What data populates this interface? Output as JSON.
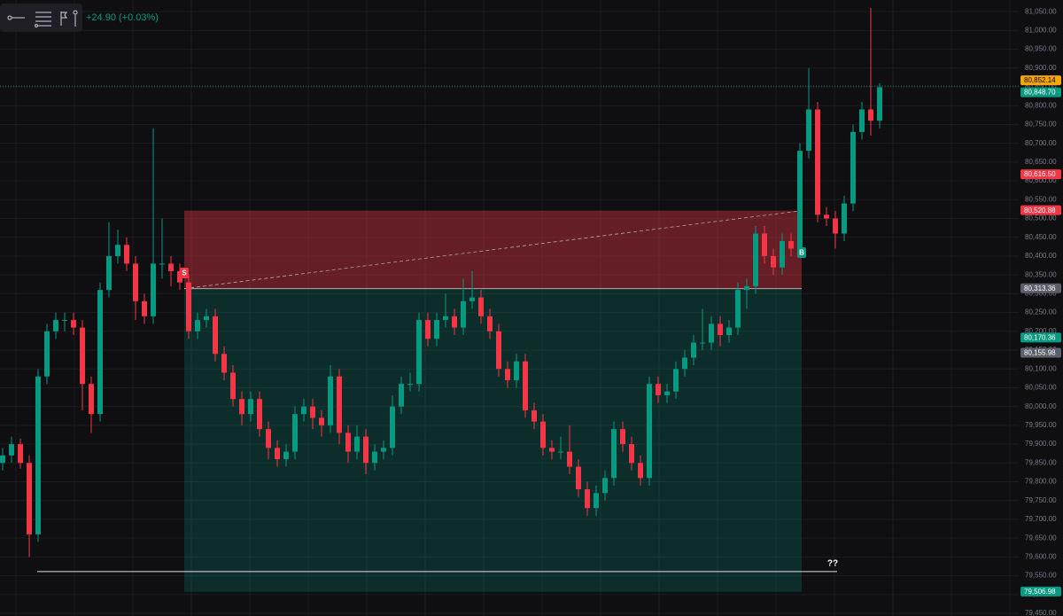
{
  "chart_data": {
    "type": "candlestick",
    "change_label": "+24.90 (+0.03%)",
    "up_color": "#089981",
    "down_color": "#f23645",
    "ylim": [
      79443,
      81081
    ],
    "yticks": [
      {
        "value": 79450,
        "label": "79,450.00"
      },
      {
        "value": 79500,
        "label": "79,500.00"
      },
      {
        "value": 79550,
        "label": "79,550.00"
      },
      {
        "value": 79600,
        "label": "79,600.00"
      },
      {
        "value": 79650,
        "label": "79,650.00"
      },
      {
        "value": 79700,
        "label": "79,700.00"
      },
      {
        "value": 79750,
        "label": "79,750.00"
      },
      {
        "value": 79800,
        "label": "79,800.00"
      },
      {
        "value": 79850,
        "label": "79,850.00"
      },
      {
        "value": 79900,
        "label": "79,900.00"
      },
      {
        "value": 79950,
        "label": "79,950.00"
      },
      {
        "value": 80000,
        "label": "80,000.00"
      },
      {
        "value": 80050,
        "label": "80,050.00"
      },
      {
        "value": 80100,
        "label": "80,100.00"
      },
      {
        "value": 80150,
        "label": "80,150.00"
      },
      {
        "value": 80200,
        "label": "80,200.00"
      },
      {
        "value": 80250,
        "label": "80,250.00"
      },
      {
        "value": 80300,
        "label": "80,300.00"
      },
      {
        "value": 80350,
        "label": "80,350.00"
      },
      {
        "value": 80400,
        "label": "80,400.00"
      },
      {
        "value": 80450,
        "label": "80,450.00"
      },
      {
        "value": 80500,
        "label": "80,500.00"
      },
      {
        "value": 80550,
        "label": "80,550.00"
      },
      {
        "value": 80600,
        "label": "80,600.00"
      },
      {
        "value": 80650,
        "label": "80,650.00"
      },
      {
        "value": 80700,
        "label": "80,700.00"
      },
      {
        "value": 80750,
        "label": "80,750.00"
      },
      {
        "value": 80800,
        "label": "80,800.00"
      },
      {
        "value": 80850,
        "label": "80,850.00"
      },
      {
        "value": 80900,
        "label": "80,900.00"
      },
      {
        "value": 80950,
        "label": "80,950.00"
      },
      {
        "value": 81000,
        "label": "81,000.00"
      },
      {
        "value": 81050,
        "label": "81,050.00"
      }
    ],
    "price_labels": [
      {
        "value": 80852.14,
        "label": "80,852.14",
        "color": "#f7a600"
      },
      {
        "value": 80848.7,
        "label": "80,848.70",
        "color": "#089981"
      },
      {
        "value": 80616.5,
        "label": "80,616.50",
        "color": "#f23645"
      },
      {
        "value": 80520.88,
        "label": "80,520.88",
        "color": "#f23645"
      },
      {
        "value": 80313.36,
        "label": "80,313.36",
        "color": "#5d606b"
      },
      {
        "value": 80170.36,
        "label": "80,170.36",
        "color": "#089981"
      },
      {
        "value": 80155.98,
        "label": "80,155.98",
        "color": "#5d606b"
      },
      {
        "value": 79506.98,
        "label": "79,506.98",
        "color": "#089981"
      }
    ],
    "sell_marker": "S",
    "buy_marker": "B",
    "hline": {
      "value": 79561,
      "label": "??"
    },
    "ohlc": [
      [
        79850,
        79890,
        79830,
        79870
      ],
      [
        79870,
        79920,
        79850,
        79900
      ],
      [
        79900,
        79915,
        79835,
        79850
      ],
      [
        79850,
        79870,
        79600,
        79660
      ],
      [
        79660,
        80100,
        79640,
        80080
      ],
      [
        80080,
        80220,
        80060,
        80200
      ],
      [
        80200,
        80250,
        80180,
        80230
      ],
      [
        80230,
        80250,
        80200,
        80230
      ],
      [
        80230,
        80250,
        80190,
        80210
      ],
      [
        80210,
        80230,
        79990,
        80060
      ],
      [
        80060,
        80080,
        79930,
        79980
      ],
      [
        79980,
        80330,
        79960,
        80310
      ],
      [
        80310,
        80490,
        80290,
        80400
      ],
      [
        80400,
        80470,
        80380,
        80430
      ],
      [
        80430,
        80450,
        80360,
        80380
      ],
      [
        80380,
        80400,
        80230,
        80280
      ],
      [
        80280,
        80300,
        80220,
        80240
      ],
      [
        80240,
        80740,
        80220,
        80380
      ],
      [
        80380,
        80500,
        80340,
        80380
      ],
      [
        80380,
        80400,
        80320,
        80360
      ],
      [
        80360,
        80380,
        80310,
        80330
      ],
      [
        80330,
        80350,
        80180,
        80200
      ],
      [
        80200,
        80250,
        80180,
        80230
      ],
      [
        80230,
        80260,
        80210,
        80240
      ],
      [
        80240,
        80260,
        80120,
        80140
      ],
      [
        80140,
        80160,
        80070,
        80090
      ],
      [
        80090,
        80110,
        80000,
        80020
      ],
      [
        80020,
        80040,
        79950,
        79980
      ],
      [
        79980,
        80040,
        79960,
        80020
      ],
      [
        80020,
        80040,
        79920,
        79940
      ],
      [
        79940,
        79960,
        79860,
        79890
      ],
      [
        79890,
        79910,
        79840,
        79860
      ],
      [
        79860,
        79900,
        79840,
        79880
      ],
      [
        79880,
        80000,
        79860,
        79980
      ],
      [
        79980,
        80020,
        79960,
        80000
      ],
      [
        80000,
        80020,
        79940,
        79970
      ],
      [
        79970,
        79990,
        79920,
        79950
      ],
      [
        79950,
        80110,
        79930,
        80080
      ],
      [
        80080,
        80100,
        79900,
        79930
      ],
      [
        79930,
        79950,
        79850,
        79880
      ],
      [
        79880,
        79950,
        79860,
        79920
      ],
      [
        79920,
        79940,
        79820,
        79850
      ],
      [
        79850,
        79900,
        79830,
        79880
      ],
      [
        79880,
        79910,
        79860,
        79890
      ],
      [
        79890,
        80030,
        79870,
        80000
      ],
      [
        80000,
        80080,
        79980,
        80060
      ],
      [
        80060,
        80090,
        80040,
        80060
      ],
      [
        80060,
        80250,
        80040,
        80230
      ],
      [
        80230,
        80250,
        80160,
        80180
      ],
      [
        80180,
        80250,
        80160,
        80230
      ],
      [
        80230,
        80300,
        80210,
        80240
      ],
      [
        80240,
        80260,
        80190,
        80210
      ],
      [
        80210,
        80340,
        80190,
        80280
      ],
      [
        80280,
        80360,
        80260,
        80290
      ],
      [
        80290,
        80310,
        80220,
        80240
      ],
      [
        80240,
        80260,
        80180,
        80200
      ],
      [
        80200,
        80220,
        80080,
        80100
      ],
      [
        80100,
        80120,
        80050,
        80070
      ],
      [
        80070,
        80140,
        80050,
        80120
      ],
      [
        80120,
        80140,
        79970,
        79990
      ],
      [
        79990,
        80010,
        79940,
        79960
      ],
      [
        79960,
        79980,
        79870,
        79890
      ],
      [
        79890,
        79910,
        79860,
        79880
      ],
      [
        79880,
        79920,
        79860,
        79880
      ],
      [
        79880,
        79950,
        79820,
        79840
      ],
      [
        79840,
        79860,
        79760,
        79780
      ],
      [
        79780,
        79800,
        79710,
        79730
      ],
      [
        79730,
        79790,
        79710,
        79770
      ],
      [
        79770,
        79830,
        79750,
        79810
      ],
      [
        79810,
        79960,
        79790,
        79940
      ],
      [
        79940,
        79960,
        79880,
        79900
      ],
      [
        79900,
        79920,
        79830,
        79850
      ],
      [
        79850,
        79870,
        79790,
        79810
      ],
      [
        79810,
        80080,
        79790,
        80060
      ],
      [
        80060,
        80080,
        80010,
        80030
      ],
      [
        80030,
        80060,
        80010,
        80040
      ],
      [
        80040,
        80120,
        80020,
        80100
      ],
      [
        80100,
        80150,
        80080,
        80130
      ],
      [
        80130,
        80190,
        80110,
        80170
      ],
      [
        80170,
        80260,
        80150,
        80170
      ],
      [
        80170,
        80240,
        80150,
        80220
      ],
      [
        80220,
        80240,
        80160,
        80190
      ],
      [
        80190,
        80230,
        80170,
        80210
      ],
      [
        80210,
        80330,
        80190,
        80310
      ],
      [
        80310,
        80340,
        80260,
        80320
      ],
      [
        80320,
        80480,
        80300,
        80460
      ],
      [
        80460,
        80480,
        80380,
        80400
      ],
      [
        80400,
        80420,
        80350,
        80370
      ],
      [
        80370,
        80460,
        80350,
        80440
      ],
      [
        80440,
        80460,
        80400,
        80420
      ],
      [
        80420,
        80700,
        80400,
        80680
      ],
      [
        80680,
        80900,
        80660,
        80790
      ],
      [
        80790,
        80810,
        80490,
        80510
      ],
      [
        80510,
        80530,
        80480,
        80500
      ],
      [
        80500,
        80520,
        80420,
        80460
      ],
      [
        80460,
        80560,
        80440,
        80540
      ],
      [
        80540,
        80750,
        80520,
        80730
      ],
      [
        80730,
        80810,
        80710,
        80790
      ],
      [
        80790,
        81060,
        80720,
        80760
      ],
      [
        80760,
        80860,
        80740,
        80849
      ]
    ]
  }
}
